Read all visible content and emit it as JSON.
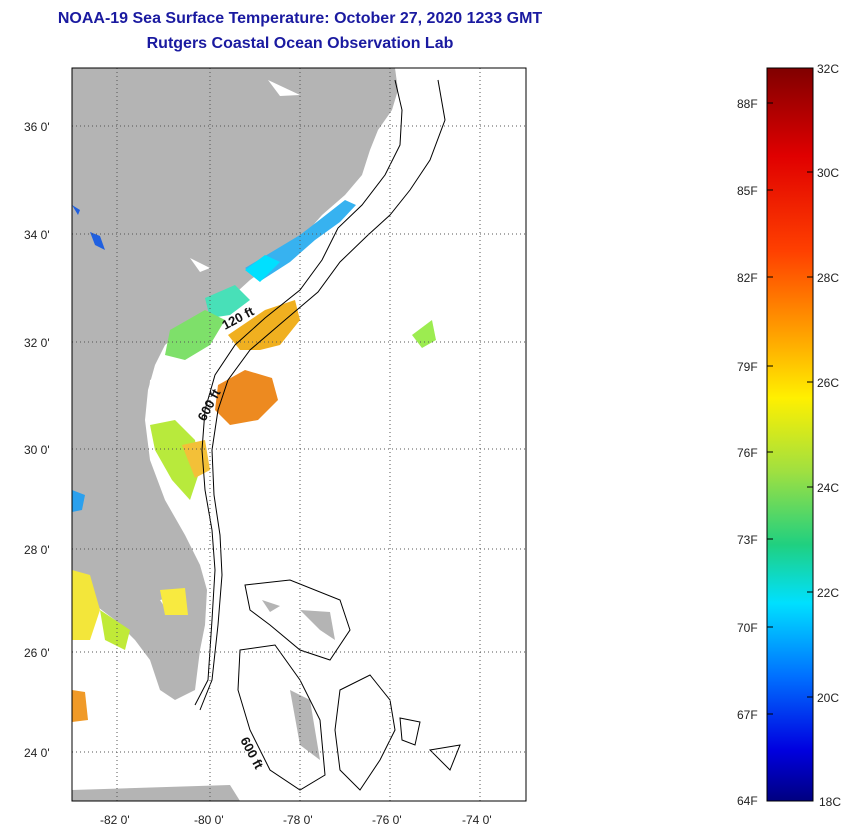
{
  "title": "NOAA-19 Sea Surface Temperature:  October 27, 2020 1233 GMT",
  "subtitle": "Rutgers Coastal Ocean Observation Lab",
  "map": {
    "lon_ticks": [
      "-82 0'",
      "-80 0'",
      "-78 0'",
      "-76 0'",
      "-74 0'"
    ],
    "lat_ticks": [
      "36 0'",
      "34 0'",
      "32 0'",
      "30 0'",
      "28 0'",
      "26 0'",
      "24 0'"
    ],
    "contour_labels": [
      "120 ft",
      "600 ft",
      "600 ft"
    ],
    "colors": {
      "land": "#b4b4b4",
      "ocean_nodata": "#ffffff",
      "grid": "#555555"
    }
  },
  "colorbar": {
    "fahrenheit": [
      "88F",
      "85F",
      "82F",
      "79F",
      "76F",
      "73F",
      "70F",
      "67F",
      "64F"
    ],
    "celsius": [
      "32C",
      "30C",
      "28C",
      "26C",
      "24C",
      "22C",
      "20C",
      "18C"
    ],
    "range_c": [
      18,
      32
    ]
  }
}
